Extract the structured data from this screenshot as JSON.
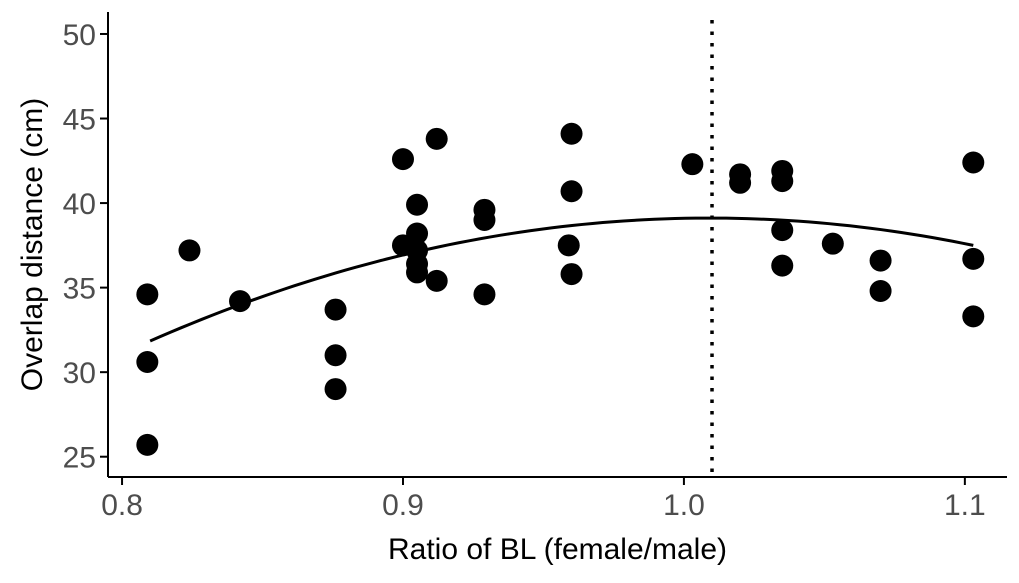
{
  "chart_data": {
    "type": "scatter",
    "title": "",
    "xlabel": "Ratio of BL (female/male)",
    "ylabel": "Overlap distance (cm)",
    "xlim": [
      0.795,
      1.115
    ],
    "ylim": [
      23.8,
      51.3
    ],
    "xticks": [
      0.8,
      0.9,
      1.0,
      1.1
    ],
    "xtick_labels": [
      "0.8",
      "0.9",
      "1.0",
      "1.1"
    ],
    "yticks": [
      25,
      30,
      35,
      40,
      45,
      50
    ],
    "ytick_labels": [
      "25",
      "30",
      "35",
      "40",
      "45",
      "50"
    ],
    "grid": false,
    "colors": {
      "points": "#000000",
      "fit": "#000000",
      "axis": "#000000",
      "tick_text": "#4d4d4d"
    },
    "series": [
      {
        "points": [
          {
            "x": 0.809,
            "y": 34.6
          },
          {
            "x": 0.809,
            "y": 30.6
          },
          {
            "x": 0.809,
            "y": 25.7
          },
          {
            "x": 0.824,
            "y": 37.2
          },
          {
            "x": 0.842,
            "y": 34.2
          },
          {
            "x": 0.876,
            "y": 33.7
          },
          {
            "x": 0.876,
            "y": 31.0
          },
          {
            "x": 0.876,
            "y": 29.0
          },
          {
            "x": 0.9,
            "y": 42.6
          },
          {
            "x": 0.9,
            "y": 37.5
          },
          {
            "x": 0.905,
            "y": 39.9
          },
          {
            "x": 0.905,
            "y": 38.2
          },
          {
            "x": 0.905,
            "y": 37.2
          },
          {
            "x": 0.905,
            "y": 36.4
          },
          {
            "x": 0.905,
            "y": 35.9
          },
          {
            "x": 0.912,
            "y": 43.8
          },
          {
            "x": 0.912,
            "y": 35.4
          },
          {
            "x": 0.929,
            "y": 39.6
          },
          {
            "x": 0.929,
            "y": 39.0
          },
          {
            "x": 0.929,
            "y": 34.6
          },
          {
            "x": 0.959,
            "y": 37.5
          },
          {
            "x": 0.96,
            "y": 44.1
          },
          {
            "x": 0.96,
            "y": 40.7
          },
          {
            "x": 0.96,
            "y": 35.8
          },
          {
            "x": 1.003,
            "y": 42.3
          },
          {
            "x": 1.02,
            "y": 41.7
          },
          {
            "x": 1.02,
            "y": 41.2
          },
          {
            "x": 1.035,
            "y": 41.9
          },
          {
            "x": 1.035,
            "y": 41.3
          },
          {
            "x": 1.035,
            "y": 38.4
          },
          {
            "x": 1.035,
            "y": 36.3
          },
          {
            "x": 1.053,
            "y": 37.6
          },
          {
            "x": 1.07,
            "y": 36.6
          },
          {
            "x": 1.07,
            "y": 34.8
          },
          {
            "x": 1.103,
            "y": 42.4
          },
          {
            "x": 1.103,
            "y": 36.7
          },
          {
            "x": 1.103,
            "y": 33.3
          }
        ]
      }
    ],
    "fit_curve": {
      "type": "quadratic",
      "x_range": [
        0.81,
        1.103
      ],
      "points": [
        {
          "x": 0.81,
          "y": 31.8
        },
        {
          "x": 0.842,
          "y": 34.1
        },
        {
          "x": 0.876,
          "y": 35.8
        },
        {
          "x": 0.9,
          "y": 36.9
        },
        {
          "x": 0.95,
          "y": 38.5
        },
        {
          "x": 1.0,
          "y": 39.1
        },
        {
          "x": 1.05,
          "y": 38.8
        },
        {
          "x": 1.103,
          "y": 37.5
        }
      ]
    },
    "reference_line": {
      "orientation": "vertical",
      "x": 1.01,
      "style": "dotted"
    }
  }
}
